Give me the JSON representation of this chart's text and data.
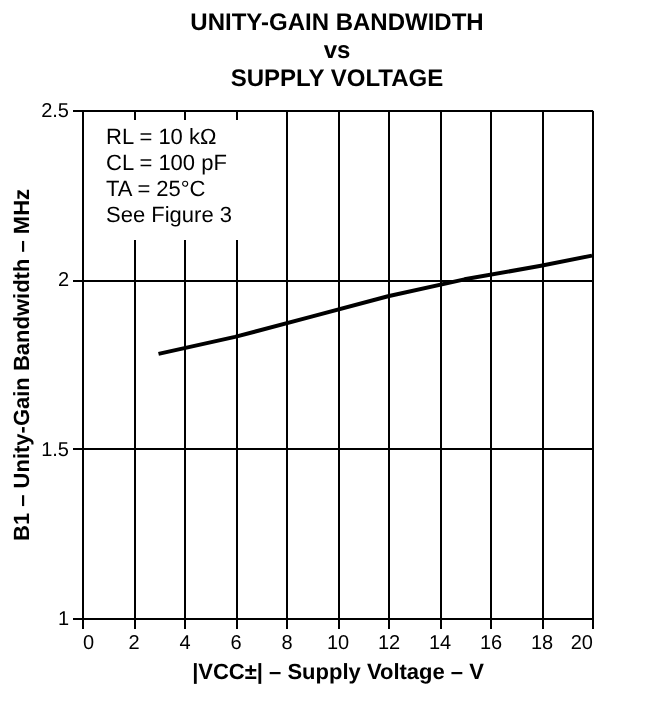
{
  "chart_data": {
    "type": "line",
    "title": "UNITY-GAIN BANDWIDTH\nvs\nSUPPLY VOLTAGE",
    "xlabel": "|VCC±| – Supply Voltage – V",
    "ylabel": "B1 – Unity-Gain Bandwidth – MHz",
    "x": [
      3,
      6,
      9,
      12,
      15,
      18,
      20
    ],
    "series": [
      {
        "color": "#000000",
        "values": [
          1.78,
          1.83,
          1.89,
          1.95,
          2.0,
          2.04,
          2.07
        ]
      }
    ],
    "xlim": [
      0,
      20
    ],
    "xticks": [
      0,
      2,
      4,
      6,
      8,
      10,
      12,
      14,
      16,
      18,
      20
    ],
    "ylim": [
      1,
      2.5
    ],
    "yticks": [
      1,
      1.5,
      2,
      2.5
    ],
    "grid": true,
    "marker": "none",
    "line_style": "solid",
    "annotations": [
      "RL = 10 kΩ",
      "CL = 100 pF",
      "TA = 25°C",
      "See Figure 3"
    ]
  }
}
